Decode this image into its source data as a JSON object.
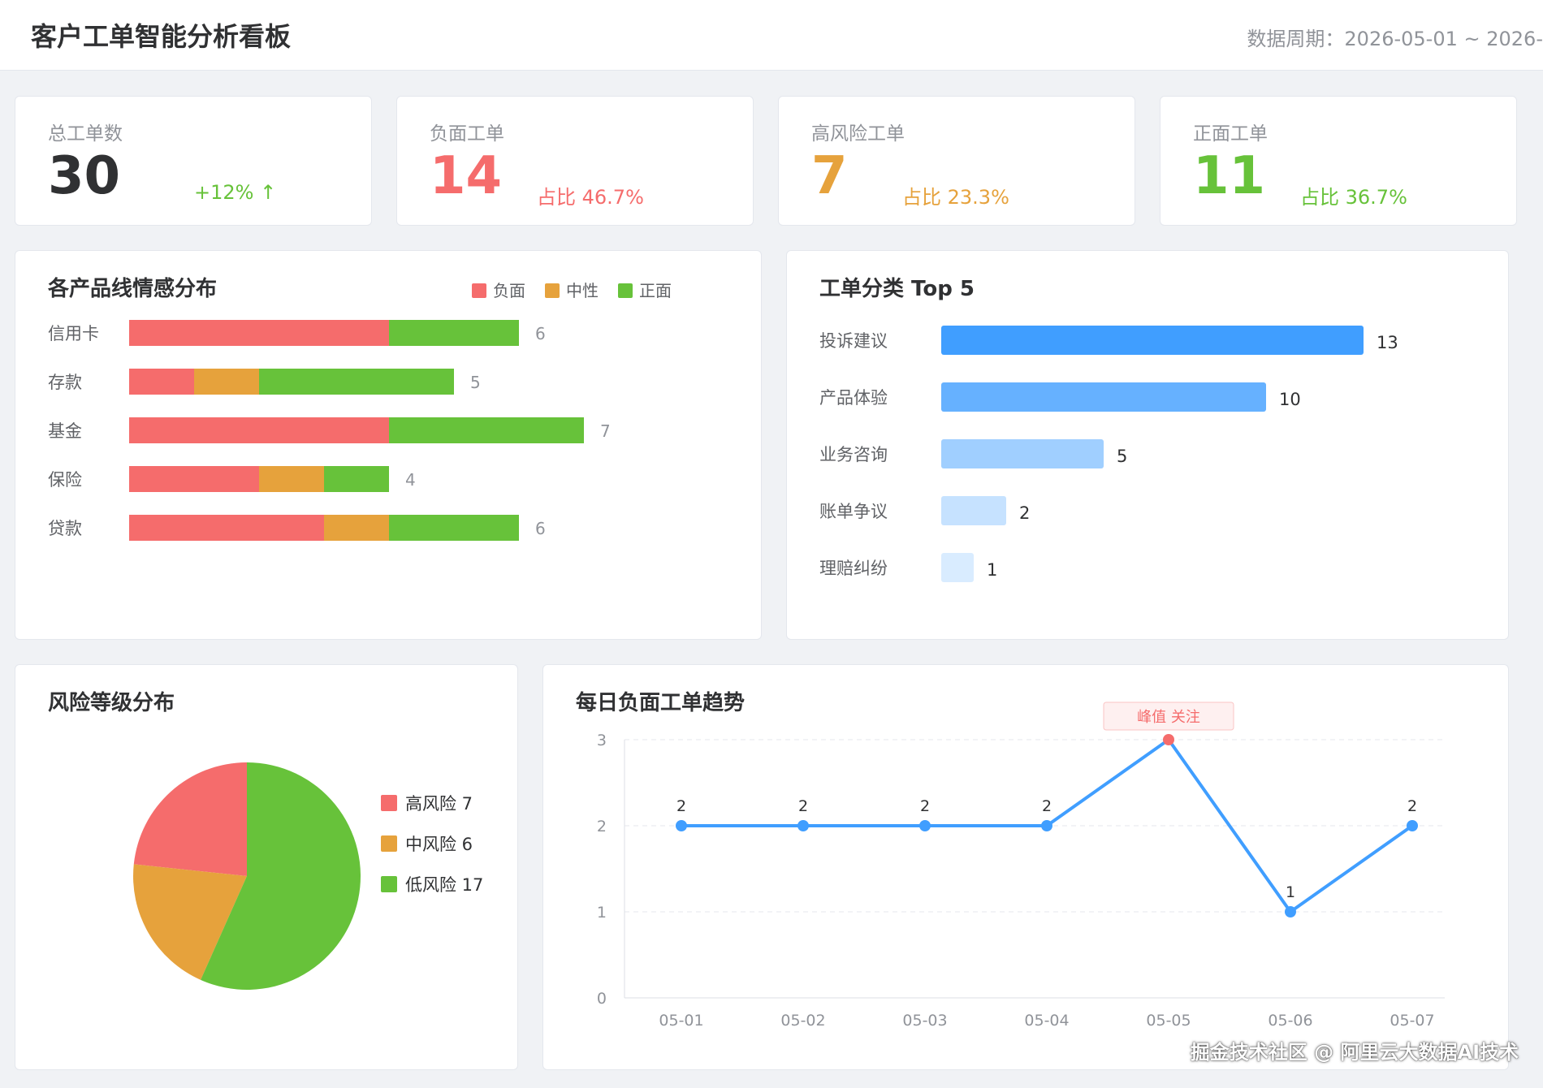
{
  "header": {
    "title": "客户工单智能分析看板",
    "period": "数据周期：2026-05-01 ~ 2026-"
  },
  "colors": {
    "negative": "#f56c6c",
    "neutral": "#e6a23c",
    "positive": "#67c23a",
    "primary": "#409eff",
    "text": "#303133",
    "muted": "#909399"
  },
  "stats": [
    {
      "label": "总工单数",
      "value": "30",
      "sub": "+12% ↑",
      "value_color": "#303133",
      "sub_color": "#67c23a"
    },
    {
      "label": "负面工单",
      "value": "14",
      "sub": "占比 46.7%",
      "value_color": "#f56c6c",
      "sub_color": "#f56c6c"
    },
    {
      "label": "高风险工单",
      "value": "7",
      "sub": "占比 23.3%",
      "value_color": "#e6a23c",
      "sub_color": "#e6a23c"
    },
    {
      "label": "正面工单",
      "value": "11",
      "sub": "占比 36.7%",
      "value_color": "#67c23a",
      "sub_color": "#67c23a"
    }
  ],
  "panels": {
    "sentiment": "各产品线情感分布",
    "category": "工单分类 Top 5",
    "risk": "风险等级分布",
    "trend": "每日负面工单趋势"
  },
  "chart_data": [
    {
      "type": "bar",
      "orientation": "horizontal",
      "stacked": true,
      "title": "各产品线情感分布",
      "legend": "top-right",
      "categories": [
        "信用卡",
        "存款",
        "基金",
        "保险",
        "贷款"
      ],
      "series": [
        {
          "name": "负面",
          "color": "#f56c6c",
          "values": [
            4,
            1,
            4,
            2,
            3
          ]
        },
        {
          "name": "中性",
          "color": "#e6a23c",
          "values": [
            0,
            1,
            0,
            1,
            1
          ]
        },
        {
          "name": "正面",
          "color": "#67c23a",
          "values": [
            2,
            3,
            3,
            1,
            2
          ]
        }
      ],
      "totals": [
        6,
        5,
        7,
        4,
        6
      ]
    },
    {
      "type": "bar",
      "orientation": "horizontal",
      "title": "工单分类 Top 5",
      "categories": [
        "投诉建议",
        "产品体验",
        "业务咨询",
        "账单争议",
        "理赔纠纷"
      ],
      "values": [
        13,
        10,
        5,
        2,
        1
      ],
      "colors": [
        "#409eff",
        "#66b1ff",
        "#a0cfff",
        "#c6e2ff",
        "#d9ecff"
      ]
    },
    {
      "type": "pie",
      "title": "风险等级分布",
      "legend": "right",
      "slices": [
        {
          "name": "高风险",
          "value": 7,
          "label": "高风险 7",
          "color": "#f56c6c"
        },
        {
          "name": "中风险",
          "value": 6,
          "label": "中风险 6",
          "color": "#e6a23c"
        },
        {
          "name": "低风险",
          "value": 17,
          "label": "低风险 17",
          "color": "#67c23a"
        }
      ]
    },
    {
      "type": "line",
      "title": "每日负面工单趋势",
      "x": [
        "05-01",
        "05-02",
        "05-03",
        "05-04",
        "05-05",
        "05-06",
        "05-07"
      ],
      "values": [
        2,
        2,
        2,
        2,
        3,
        1,
        2
      ],
      "ylim": [
        0,
        3
      ],
      "yticks": [
        0,
        1,
        2,
        3
      ],
      "grid": true,
      "color": "#409eff",
      "annotation": {
        "x": "05-05",
        "text": "峰值 关注",
        "point_color": "#f56c6c"
      }
    }
  ],
  "watermark": "掘金技术社区 @ 阿里云大数据AI技术"
}
